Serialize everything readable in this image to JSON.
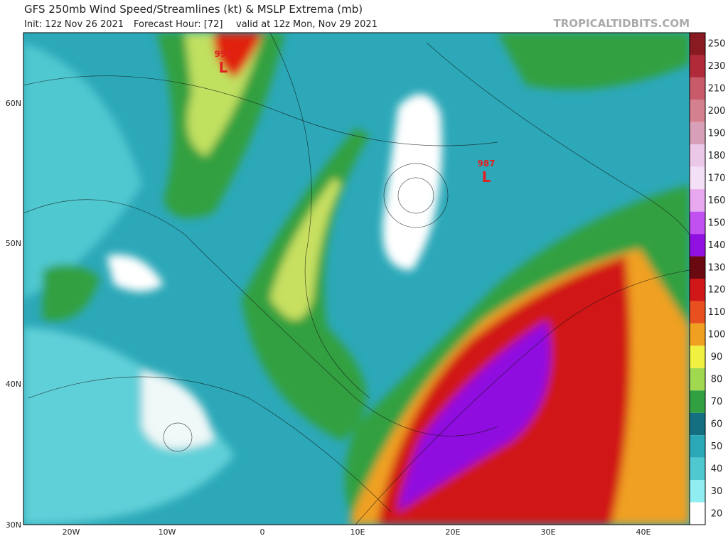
{
  "header": {
    "title": "GFS 250mb Wind Speed/Streamlines (kt) & MSLP Extrema (mb)",
    "init": "Init: 12z Nov 26 2021",
    "forecast": "Forecast Hour: [72]",
    "valid": "valid at 12z Mon, Nov 29 2021",
    "source": "TROPICALTIDBITS.COM"
  },
  "colorbar": {
    "labels": [
      250,
      230,
      210,
      200,
      190,
      180,
      170,
      160,
      150,
      140,
      130,
      120,
      110,
      100,
      90,
      80,
      70,
      60,
      50,
      40,
      30,
      20
    ],
    "colors": [
      "#8a1a22",
      "#b02a3a",
      "#c85a6a",
      "#d4808e",
      "#d8a0b8",
      "#ecc8e8",
      "#f4e0f6",
      "#e8a8f0",
      "#c050f0",
      "#9010e0",
      "#6a0a10",
      "#d01818",
      "#e85020",
      "#f0a020",
      "#f0f040",
      "#a0d850",
      "#30a040",
      "#147080",
      "#2aa8b8",
      "#50c8d0",
      "#90eef0",
      "#ffffff"
    ]
  },
  "axes": {
    "lat": [
      "60N",
      "50N",
      "40N",
      "30N"
    ],
    "lon": [
      "20W",
      "10W",
      "0",
      "10E",
      "20E",
      "30E",
      "40E"
    ]
  },
  "lows": [
    {
      "symbol": "L",
      "pressure": "992"
    },
    {
      "symbol": "L",
      "pressure": "987"
    }
  ]
}
